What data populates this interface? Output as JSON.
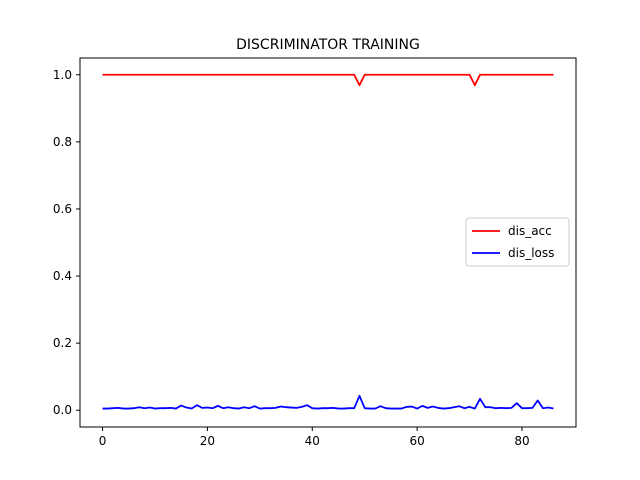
{
  "chart_data": {
    "type": "line",
    "title": "DISCRIMINATOR TRAINING",
    "xlabel": "",
    "ylabel": "",
    "xlim": [
      -4.3,
      90.3
    ],
    "ylim": [
      -0.05,
      1.05
    ],
    "xticks": [
      0,
      20,
      40,
      60,
      80
    ],
    "xtick_labels": [
      "0",
      "20",
      "40",
      "60",
      "80"
    ],
    "yticks": [
      0.0,
      0.2,
      0.4,
      0.6,
      0.8,
      1.0
    ],
    "ytick_labels": [
      "0.0",
      "0.2",
      "0.4",
      "0.6",
      "0.8",
      "1.0"
    ],
    "grid": false,
    "legend_position": "center-right",
    "x": [
      0,
      1,
      2,
      3,
      4,
      5,
      6,
      7,
      8,
      9,
      10,
      11,
      12,
      13,
      14,
      15,
      16,
      17,
      18,
      19,
      20,
      21,
      22,
      23,
      24,
      25,
      26,
      27,
      28,
      29,
      30,
      31,
      32,
      33,
      34,
      35,
      36,
      37,
      38,
      39,
      40,
      41,
      42,
      43,
      44,
      45,
      46,
      47,
      48,
      49,
      50,
      51,
      52,
      53,
      54,
      55,
      56,
      57,
      58,
      59,
      60,
      61,
      62,
      63,
      64,
      65,
      66,
      67,
      68,
      69,
      70,
      71,
      72,
      73,
      74,
      75,
      76,
      77,
      78,
      79,
      80,
      81,
      82,
      83,
      84,
      85,
      86
    ],
    "series": [
      {
        "name": "dis_acc",
        "color": "#ff0000",
        "values": [
          1,
          1,
          1,
          1,
          1,
          1,
          1,
          1,
          1,
          1,
          1,
          1,
          1,
          1,
          1,
          1,
          1,
          1,
          1,
          1,
          1,
          1,
          1,
          1,
          1,
          1,
          1,
          1,
          1,
          1,
          1,
          1,
          1,
          1,
          1,
          1,
          1,
          1,
          1,
          1,
          1,
          1,
          1,
          1,
          1,
          1,
          1,
          1,
          1,
          0.969,
          1,
          1,
          1,
          1,
          1,
          1,
          1,
          1,
          1,
          1,
          1,
          1,
          1,
          1,
          1,
          1,
          1,
          1,
          1,
          1,
          1,
          0.969,
          1,
          1,
          1,
          1,
          1,
          1,
          1,
          1,
          1,
          1,
          1,
          1,
          1,
          1,
          1
        ]
      },
      {
        "name": "dis_loss",
        "color": "#0000ff",
        "values": [
          0.005,
          0.005,
          0.006,
          0.007,
          0.005,
          0.005,
          0.006,
          0.009,
          0.006,
          0.008,
          0.005,
          0.006,
          0.006,
          0.007,
          0.005,
          0.014,
          0.008,
          0.005,
          0.015,
          0.007,
          0.008,
          0.006,
          0.013,
          0.006,
          0.009,
          0.006,
          0.005,
          0.009,
          0.006,
          0.012,
          0.005,
          0.006,
          0.006,
          0.007,
          0.011,
          0.009,
          0.008,
          0.007,
          0.01,
          0.015,
          0.006,
          0.005,
          0.006,
          0.006,
          0.007,
          0.005,
          0.005,
          0.006,
          0.006,
          0.043,
          0.006,
          0.005,
          0.005,
          0.012,
          0.006,
          0.005,
          0.005,
          0.005,
          0.01,
          0.011,
          0.005,
          0.013,
          0.007,
          0.011,
          0.007,
          0.005,
          0.006,
          0.009,
          0.012,
          0.006,
          0.01,
          0.005,
          0.034,
          0.009,
          0.009,
          0.006,
          0.007,
          0.006,
          0.007,
          0.021,
          0.006,
          0.006,
          0.007,
          0.029,
          0.006,
          0.008,
          0.005
        ]
      }
    ]
  }
}
